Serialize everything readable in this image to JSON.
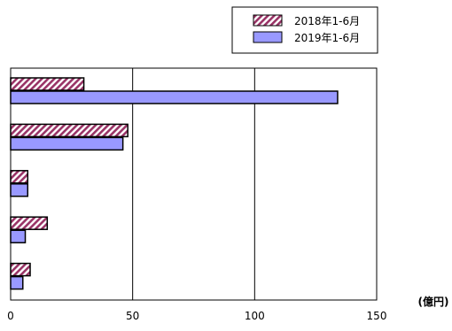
{
  "chart_data": {
    "type": "bar",
    "orientation": "horizontal",
    "categories": [
      "",
      "",
      "",
      "",
      ""
    ],
    "series": [
      {
        "name": "2018年1-6月",
        "values": [
          30,
          48,
          7,
          15,
          8
        ],
        "color": "#993366",
        "fill": "hatched"
      },
      {
        "name": "2019年1-6月",
        "values": [
          134,
          46,
          7,
          6,
          5
        ],
        "color": "#9999ff",
        "fill": "solid"
      }
    ],
    "xlim": [
      0,
      150
    ],
    "xticks": [
      0,
      50,
      100,
      150
    ],
    "xunit": "(億円)",
    "grid": "vertical",
    "legend": "top-right",
    "title": "",
    "xlabel": "",
    "ylabel": ""
  }
}
